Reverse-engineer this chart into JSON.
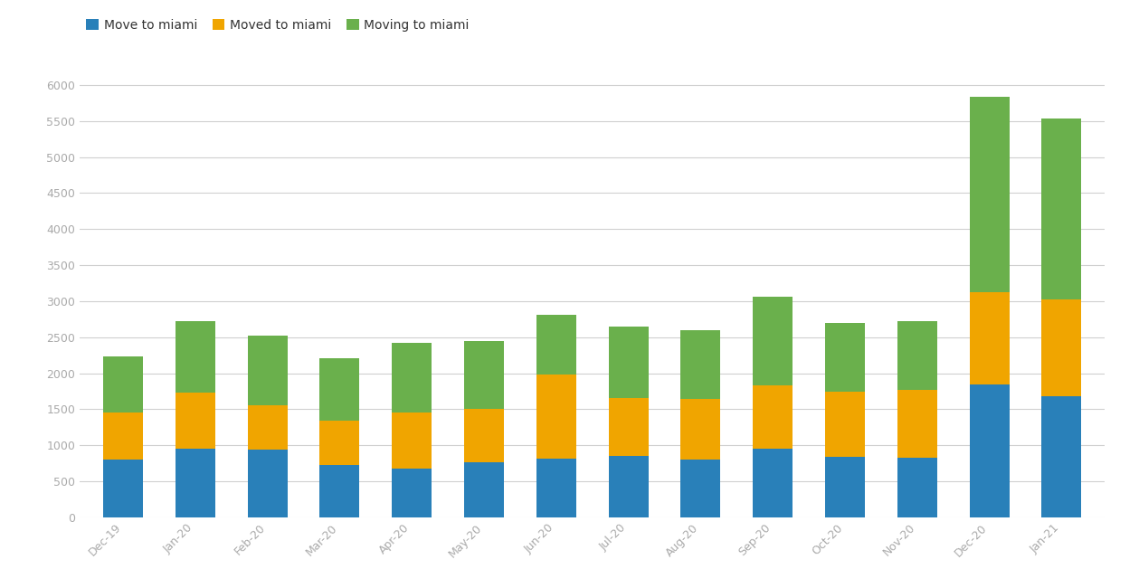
{
  "categories": [
    "Dec-19",
    "Jan-20",
    "Feb-20",
    "Mar-20",
    "Apr-20",
    "May-20",
    "Jun-20",
    "Jul-20",
    "Aug-20",
    "Sep-20",
    "Oct-20",
    "Nov-20",
    "Dec-20",
    "Jan-21"
  ],
  "move_to_miami": [
    800,
    960,
    940,
    730,
    680,
    760,
    810,
    850,
    800,
    960,
    840,
    830,
    1840,
    1680
  ],
  "moved_to_miami": [
    650,
    770,
    620,
    610,
    770,
    750,
    1170,
    810,
    850,
    870,
    910,
    940,
    1290,
    1340
  ],
  "moving_to_miami": [
    780,
    990,
    960,
    870,
    970,
    940,
    830,
    990,
    950,
    1230,
    950,
    950,
    2710,
    2510
  ],
  "colors": {
    "move_to_miami": "#2980b9",
    "moved_to_miami": "#f0a500",
    "moving_to_miami": "#6ab04c"
  },
  "legend_labels": [
    "Move to miami",
    "Moved to miami",
    "Moving to miami"
  ],
  "ylim": [
    0,
    6200
  ],
  "yticks": [
    0,
    500,
    1000,
    1500,
    2000,
    2500,
    3000,
    3500,
    4000,
    4500,
    5000,
    5500,
    6000
  ],
  "background_color": "#ffffff",
  "grid_color": "#d0d0d0",
  "bar_width": 0.55,
  "tick_label_color": "#aaaaaa",
  "tick_label_size": 9
}
